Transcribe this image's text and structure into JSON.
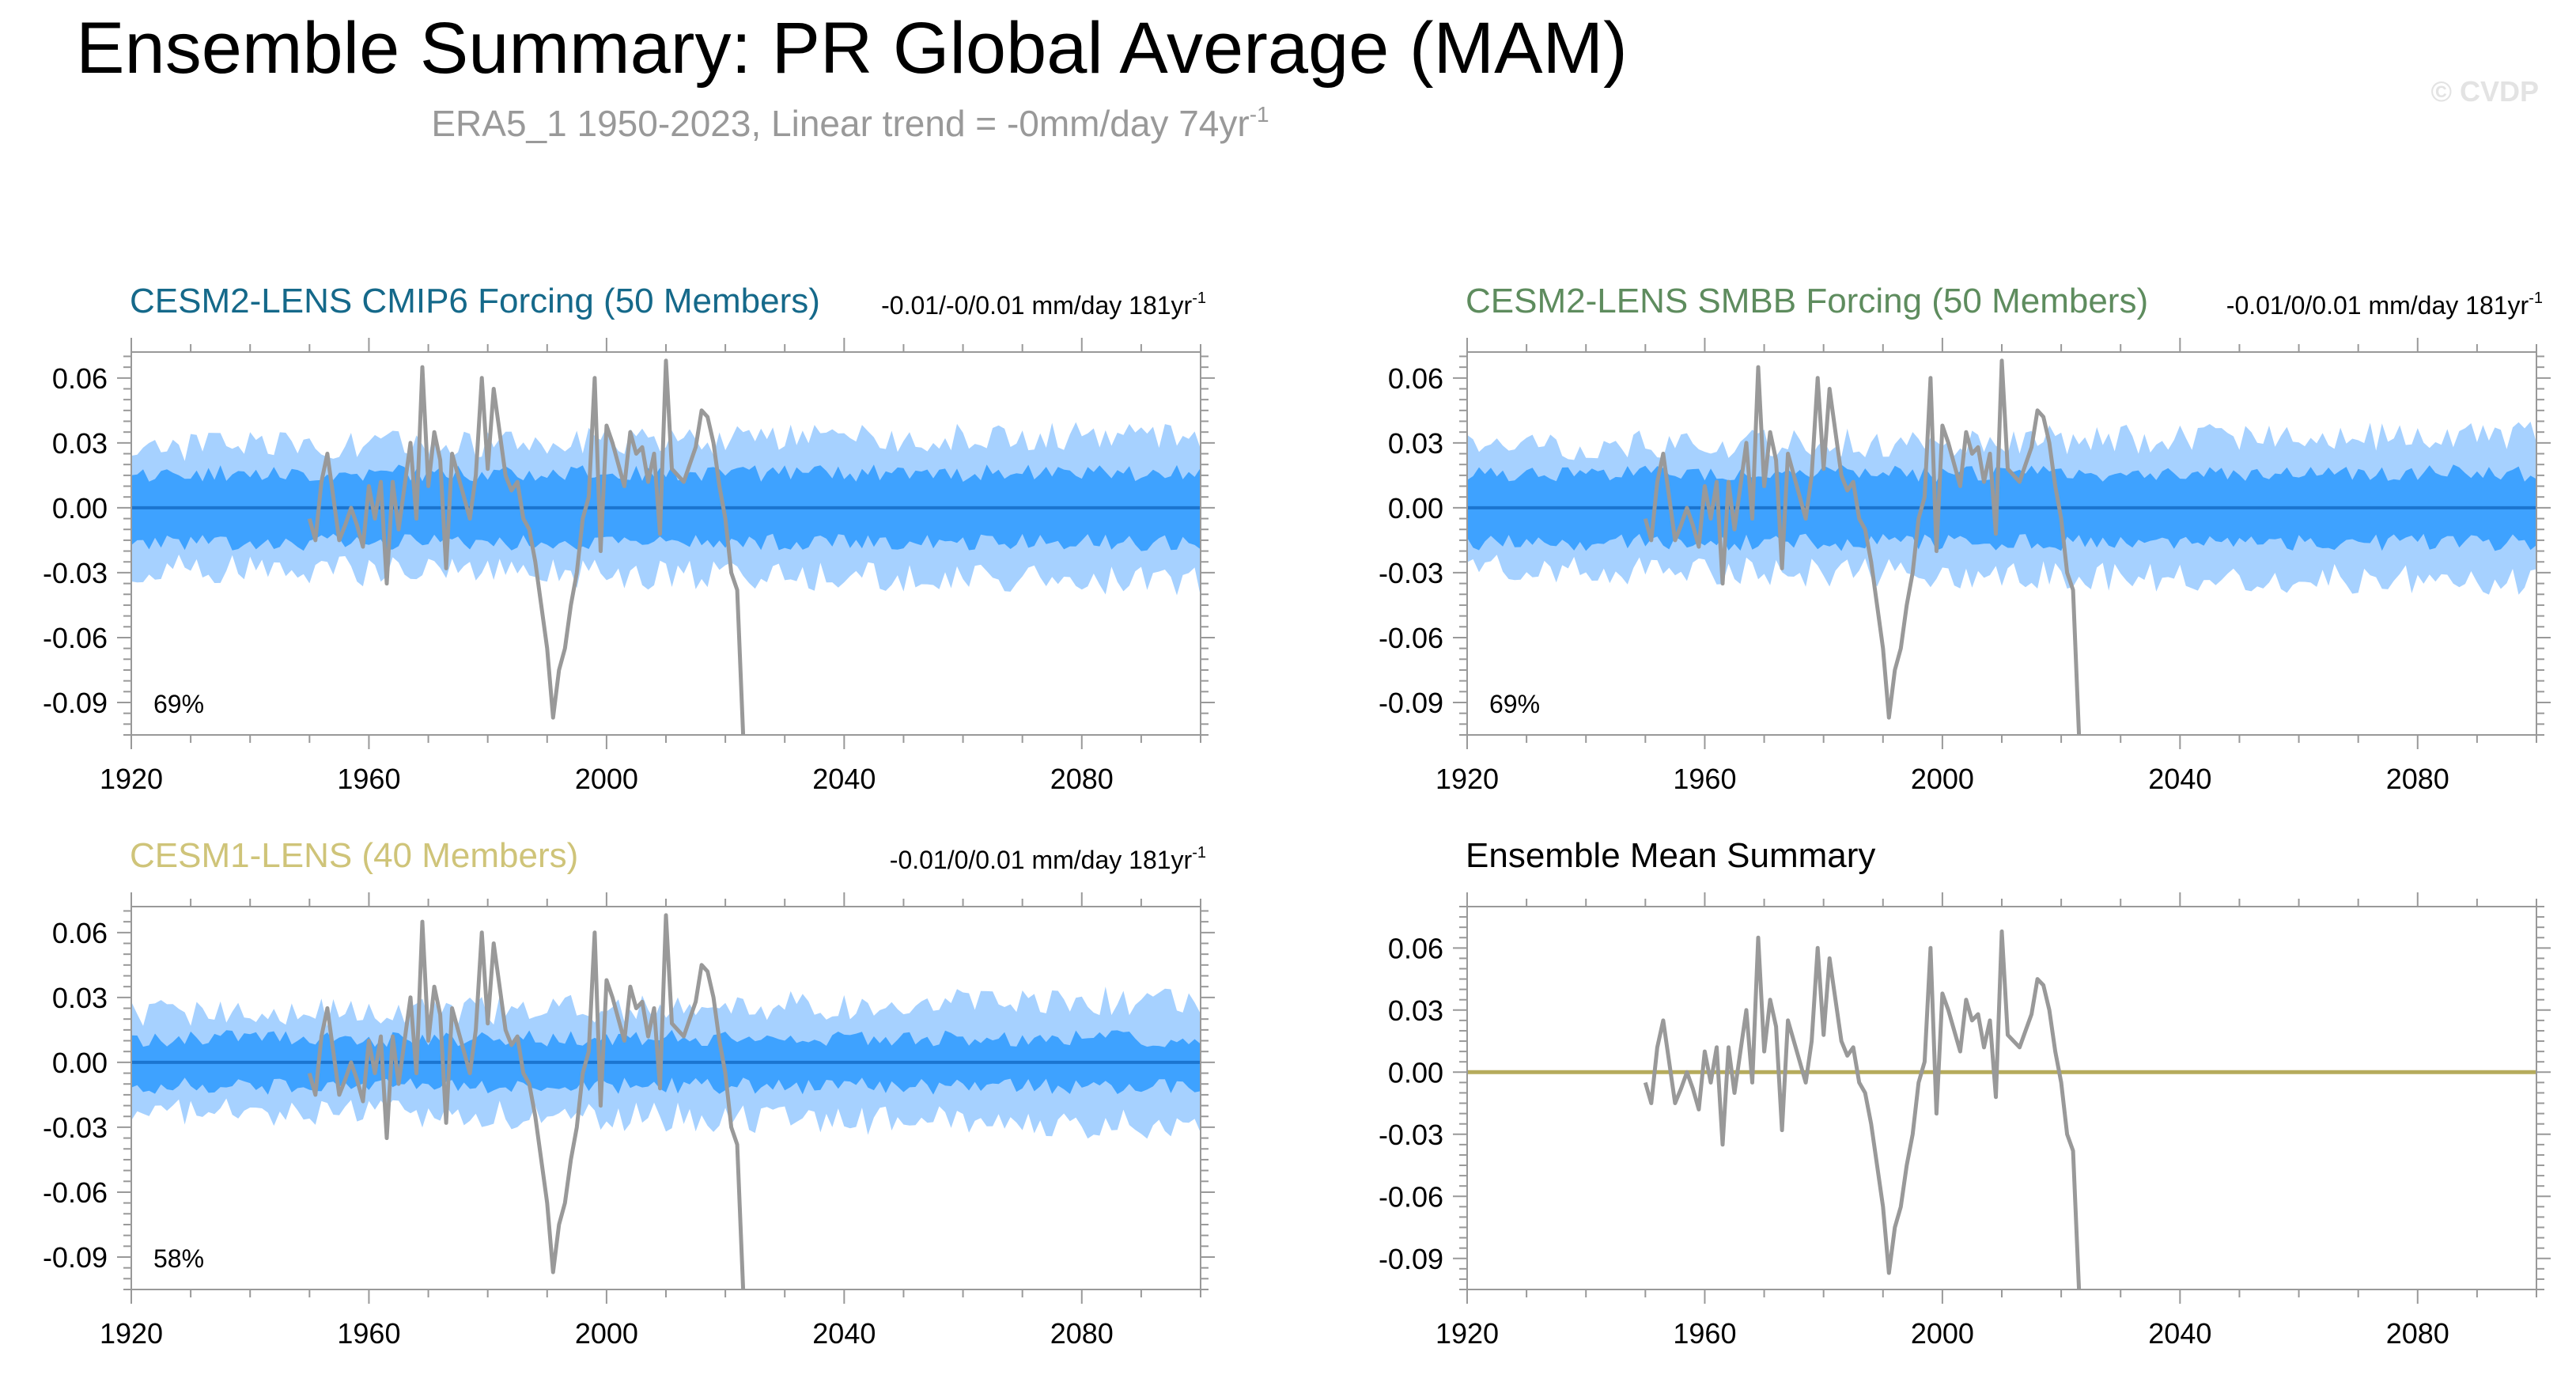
{
  "page": {
    "title": "Ensemble Summary: PR Global Average (MAM)",
    "subtitle_main": "ERA5_1 1950-2023, Linear trend = -0mm/day 74yr",
    "subtitle_sup": "-1",
    "copyright": "© CVDP"
  },
  "colors": {
    "band_outer": "#a6d1ff",
    "band_inner": "#3ea2ff",
    "ens_mean": "#1b75d0",
    "observed": "#999999",
    "title_cmip6": "#15698a",
    "title_smbb": "#5e8c5e",
    "title_cesm1": "#cfc479",
    "summary_mean": "#b5ab5c"
  },
  "chart_data": [
    {
      "type": "area",
      "id": "cmip6",
      "title": "CESM2-LENS CMIP6 Forcing (50 Members)",
      "trend_main": "-0.01/-0/0.01 mm/day 181yr",
      "trend_sup": "-1",
      "percent": "69%",
      "xlim": [
        1920,
        2100
      ],
      "ylim": [
        -0.105,
        0.072
      ],
      "xticks": [
        "1920",
        "1960",
        "2000",
        "2040",
        "2080"
      ],
      "yticks": [
        "0.06",
        "0.03",
        "0.00",
        "-0.03",
        "-0.06",
        "-0.09"
      ],
      "outer_band": 0.028,
      "inner_band": 0.016,
      "outer_trend": 0.006,
      "seed": 3
    },
    {
      "type": "area",
      "id": "smbb",
      "title": "CESM2-LENS SMBB Forcing (50 Members)",
      "trend_main": "-0.01/0/0.01 mm/day 181yr",
      "trend_sup": "-1",
      "percent": "69%",
      "xlim": [
        1920,
        2100
      ],
      "ylim": [
        -0.105,
        0.072
      ],
      "xticks": [
        "1920",
        "1960",
        "2000",
        "2040",
        "2080"
      ],
      "yticks": [
        "0.06",
        "0.03",
        "0.00",
        "-0.03",
        "-0.06",
        "-0.09"
      ],
      "outer_band": 0.028,
      "inner_band": 0.016,
      "outer_trend": 0.006,
      "seed": 11
    },
    {
      "type": "area",
      "id": "cesm1",
      "title": "CESM1-LENS (40 Members)",
      "trend_main": "-0.01/0/0.01 mm/day 181yr",
      "trend_sup": "-1",
      "percent": "58%",
      "xlim": [
        1920,
        2100
      ],
      "ylim": [
        -0.105,
        0.072
      ],
      "xticks": [
        "1920",
        "1960",
        "2000",
        "2040",
        "2080"
      ],
      "yticks": [
        "0.06",
        "0.03",
        "0.00",
        "-0.03",
        "-0.06",
        "-0.09"
      ],
      "outer_band": 0.022,
      "inner_band": 0.011,
      "outer_trend": 0.007,
      "seed": 23
    },
    {
      "type": "line",
      "id": "summary",
      "title": "Ensemble Mean Summary",
      "xlim": [
        1920,
        2100
      ],
      "ylim": [
        -0.105,
        0.08
      ],
      "xticks": [
        "1920",
        "1960",
        "2000",
        "2040",
        "2080"
      ],
      "yticks": [
        "0.06",
        "0.03",
        "0.00",
        "-0.03",
        "-0.06",
        "-0.09"
      ],
      "mean_value": 0.0
    }
  ],
  "observed": {
    "years": [
      1950,
      1951,
      1952,
      1953,
      1954,
      1955,
      1956,
      1957,
      1958,
      1959,
      1960,
      1961,
      1962,
      1963,
      1964,
      1965,
      1966,
      1967,
      1968,
      1969,
      1970,
      1971,
      1972,
      1973,
      1974,
      1975,
      1976,
      1977,
      1978,
      1979,
      1980,
      1981,
      1982,
      1983,
      1984,
      1985,
      1986,
      1987,
      1988,
      1989,
      1990,
      1991,
      1992,
      1993,
      1994,
      1995,
      1996,
      1997,
      1998,
      1999,
      2000,
      2001,
      2002,
      2003,
      2004,
      2005,
      2006,
      2007,
      2008,
      2009,
      2010,
      2011,
      2012,
      2013,
      2014,
      2015,
      2016,
      2017,
      2018,
      2019,
      2020,
      2021,
      2022,
      2023
    ],
    "values": [
      -0.005,
      -0.015,
      0.012,
      0.025,
      0.005,
      -0.015,
      -0.008,
      0.0,
      -0.008,
      -0.018,
      0.01,
      -0.005,
      0.012,
      -0.035,
      0.012,
      -0.01,
      0.01,
      0.03,
      -0.005,
      0.065,
      0.01,
      0.035,
      0.022,
      -0.028,
      0.025,
      0.015,
      0.005,
      -0.005,
      0.015,
      0.06,
      0.018,
      0.055,
      0.035,
      0.015,
      0.008,
      0.012,
      -0.005,
      -0.01,
      -0.025,
      -0.045,
      -0.065,
      -0.097,
      -0.075,
      -0.065,
      -0.045,
      -0.03,
      -0.005,
      0.005,
      0.06,
      -0.02,
      0.038,
      0.03,
      0.02,
      0.01,
      0.035,
      0.025,
      0.028,
      0.012,
      0.025,
      -0.012,
      0.068,
      0.018,
      0.015,
      0.012,
      0.02,
      0.028,
      0.045,
      0.042,
      0.03,
      0.01,
      -0.005,
      -0.03,
      -0.038,
      -0.105
    ]
  }
}
